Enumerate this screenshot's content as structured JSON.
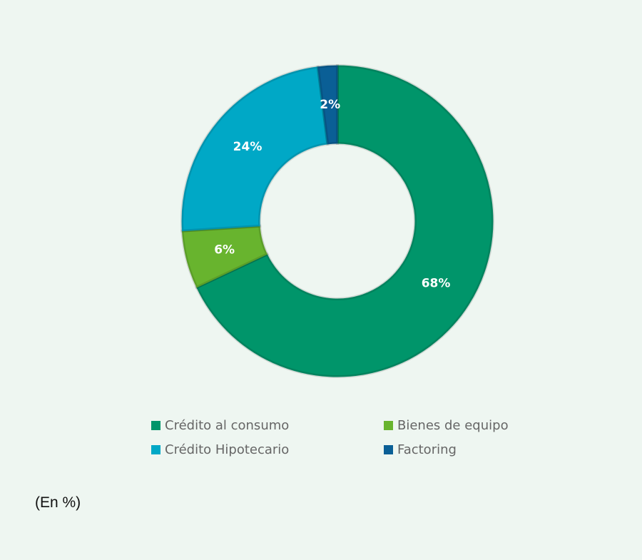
{
  "chart_data": {
    "type": "pie",
    "variant": "donut",
    "title": "",
    "units_note": "(En %)",
    "categories": [
      "Crédito al consumo",
      "Bienes de equipo",
      "Crédito Hipotecario",
      "Factoring"
    ],
    "values": [
      68,
      6,
      24,
      2
    ],
    "value_labels": [
      "68%",
      "6%",
      "24%",
      "2%"
    ],
    "colors": [
      "#00956a",
      "#68b42e",
      "#00a8c6",
      "#0a5f96"
    ],
    "legend_placement": "bottom",
    "legend_order": [
      0,
      1,
      2,
      3
    ]
  }
}
